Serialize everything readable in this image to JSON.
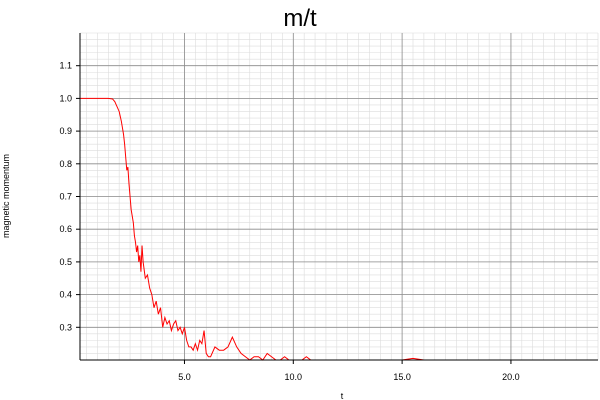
{
  "chart_data": {
    "type": "line",
    "title": "m/t",
    "xlabel": "t",
    "ylabel": "magnetic momentum",
    "xlim": [
      0.2,
      24.0
    ],
    "ylim": [
      0.2,
      1.2
    ],
    "xticks": [
      5.0,
      10.0,
      15.0,
      20.0
    ],
    "xtick_labels": [
      "5.0",
      "10.0",
      "15.0",
      "20.0"
    ],
    "yticks": [
      0.3,
      0.4,
      0.5,
      0.6,
      0.7,
      0.8,
      0.9,
      1.0,
      1.1
    ],
    "ytick_labels": [
      "0.3",
      "0.4",
      "0.5",
      "0.6",
      "0.7",
      "0.8",
      "0.9",
      "1.0",
      "1.1"
    ],
    "grid": true,
    "line_color": "#ff0000",
    "series": [
      {
        "x": [
          0.2,
          0.5,
          1.0,
          1.3,
          1.5,
          1.7,
          1.8,
          1.9,
          2.0,
          2.1,
          2.15,
          2.2,
          2.25,
          2.3,
          2.35,
          2.4,
          2.45,
          2.5,
          2.55,
          2.6,
          2.65,
          2.7,
          2.75,
          2.8,
          2.85,
          2.9,
          2.95,
          3.0,
          3.05,
          3.1,
          3.2,
          3.3,
          3.4,
          3.5,
          3.6,
          3.7,
          3.8,
          3.9,
          4.0,
          4.1,
          4.2,
          4.3,
          4.4,
          4.5,
          4.6,
          4.7,
          4.8,
          4.9,
          5.0,
          5.1,
          5.2,
          5.3,
          5.4,
          5.5,
          5.6,
          5.7,
          5.8,
          5.9,
          6.0,
          6.1,
          6.2,
          6.4,
          6.6,
          6.8,
          7.0,
          7.2,
          7.4,
          7.6,
          7.8,
          8.0,
          8.2,
          8.4,
          8.6,
          8.8,
          9.0,
          9.2,
          9.4,
          9.6,
          9.8,
          10.0,
          10.2,
          10.4,
          10.6,
          10.8,
          11.0,
          11.2,
          11.5,
          12.0,
          13.0,
          14.0,
          15.0,
          15.5,
          16.0,
          17.0,
          18.0,
          19.0,
          20.0,
          21.0,
          22.0,
          23.0,
          24.0
        ],
        "y": [
          1.0,
          1.0,
          1.0,
          1.0,
          1.0,
          0.998,
          0.99,
          0.975,
          0.96,
          0.93,
          0.91,
          0.89,
          0.86,
          0.82,
          0.78,
          0.79,
          0.74,
          0.7,
          0.66,
          0.64,
          0.62,
          0.58,
          0.56,
          0.53,
          0.55,
          0.5,
          0.52,
          0.47,
          0.55,
          0.5,
          0.45,
          0.46,
          0.42,
          0.4,
          0.36,
          0.38,
          0.34,
          0.36,
          0.3,
          0.33,
          0.31,
          0.32,
          0.29,
          0.31,
          0.32,
          0.29,
          0.3,
          0.28,
          0.3,
          0.26,
          0.24,
          0.24,
          0.23,
          0.25,
          0.23,
          0.26,
          0.25,
          0.29,
          0.22,
          0.21,
          0.21,
          0.24,
          0.23,
          0.23,
          0.24,
          0.27,
          0.24,
          0.22,
          0.21,
          0.2,
          0.21,
          0.21,
          0.2,
          0.22,
          0.21,
          0.2,
          0.2,
          0.21,
          0.2,
          0.2,
          0.2,
          0.2,
          0.21,
          0.2,
          0.2,
          0.2,
          0.2,
          0.2,
          0.2,
          0.2,
          0.2,
          0.205,
          0.2,
          0.2,
          0.2,
          0.2,
          0.2,
          0.2,
          0.2,
          0.2,
          0.2
        ]
      }
    ]
  }
}
